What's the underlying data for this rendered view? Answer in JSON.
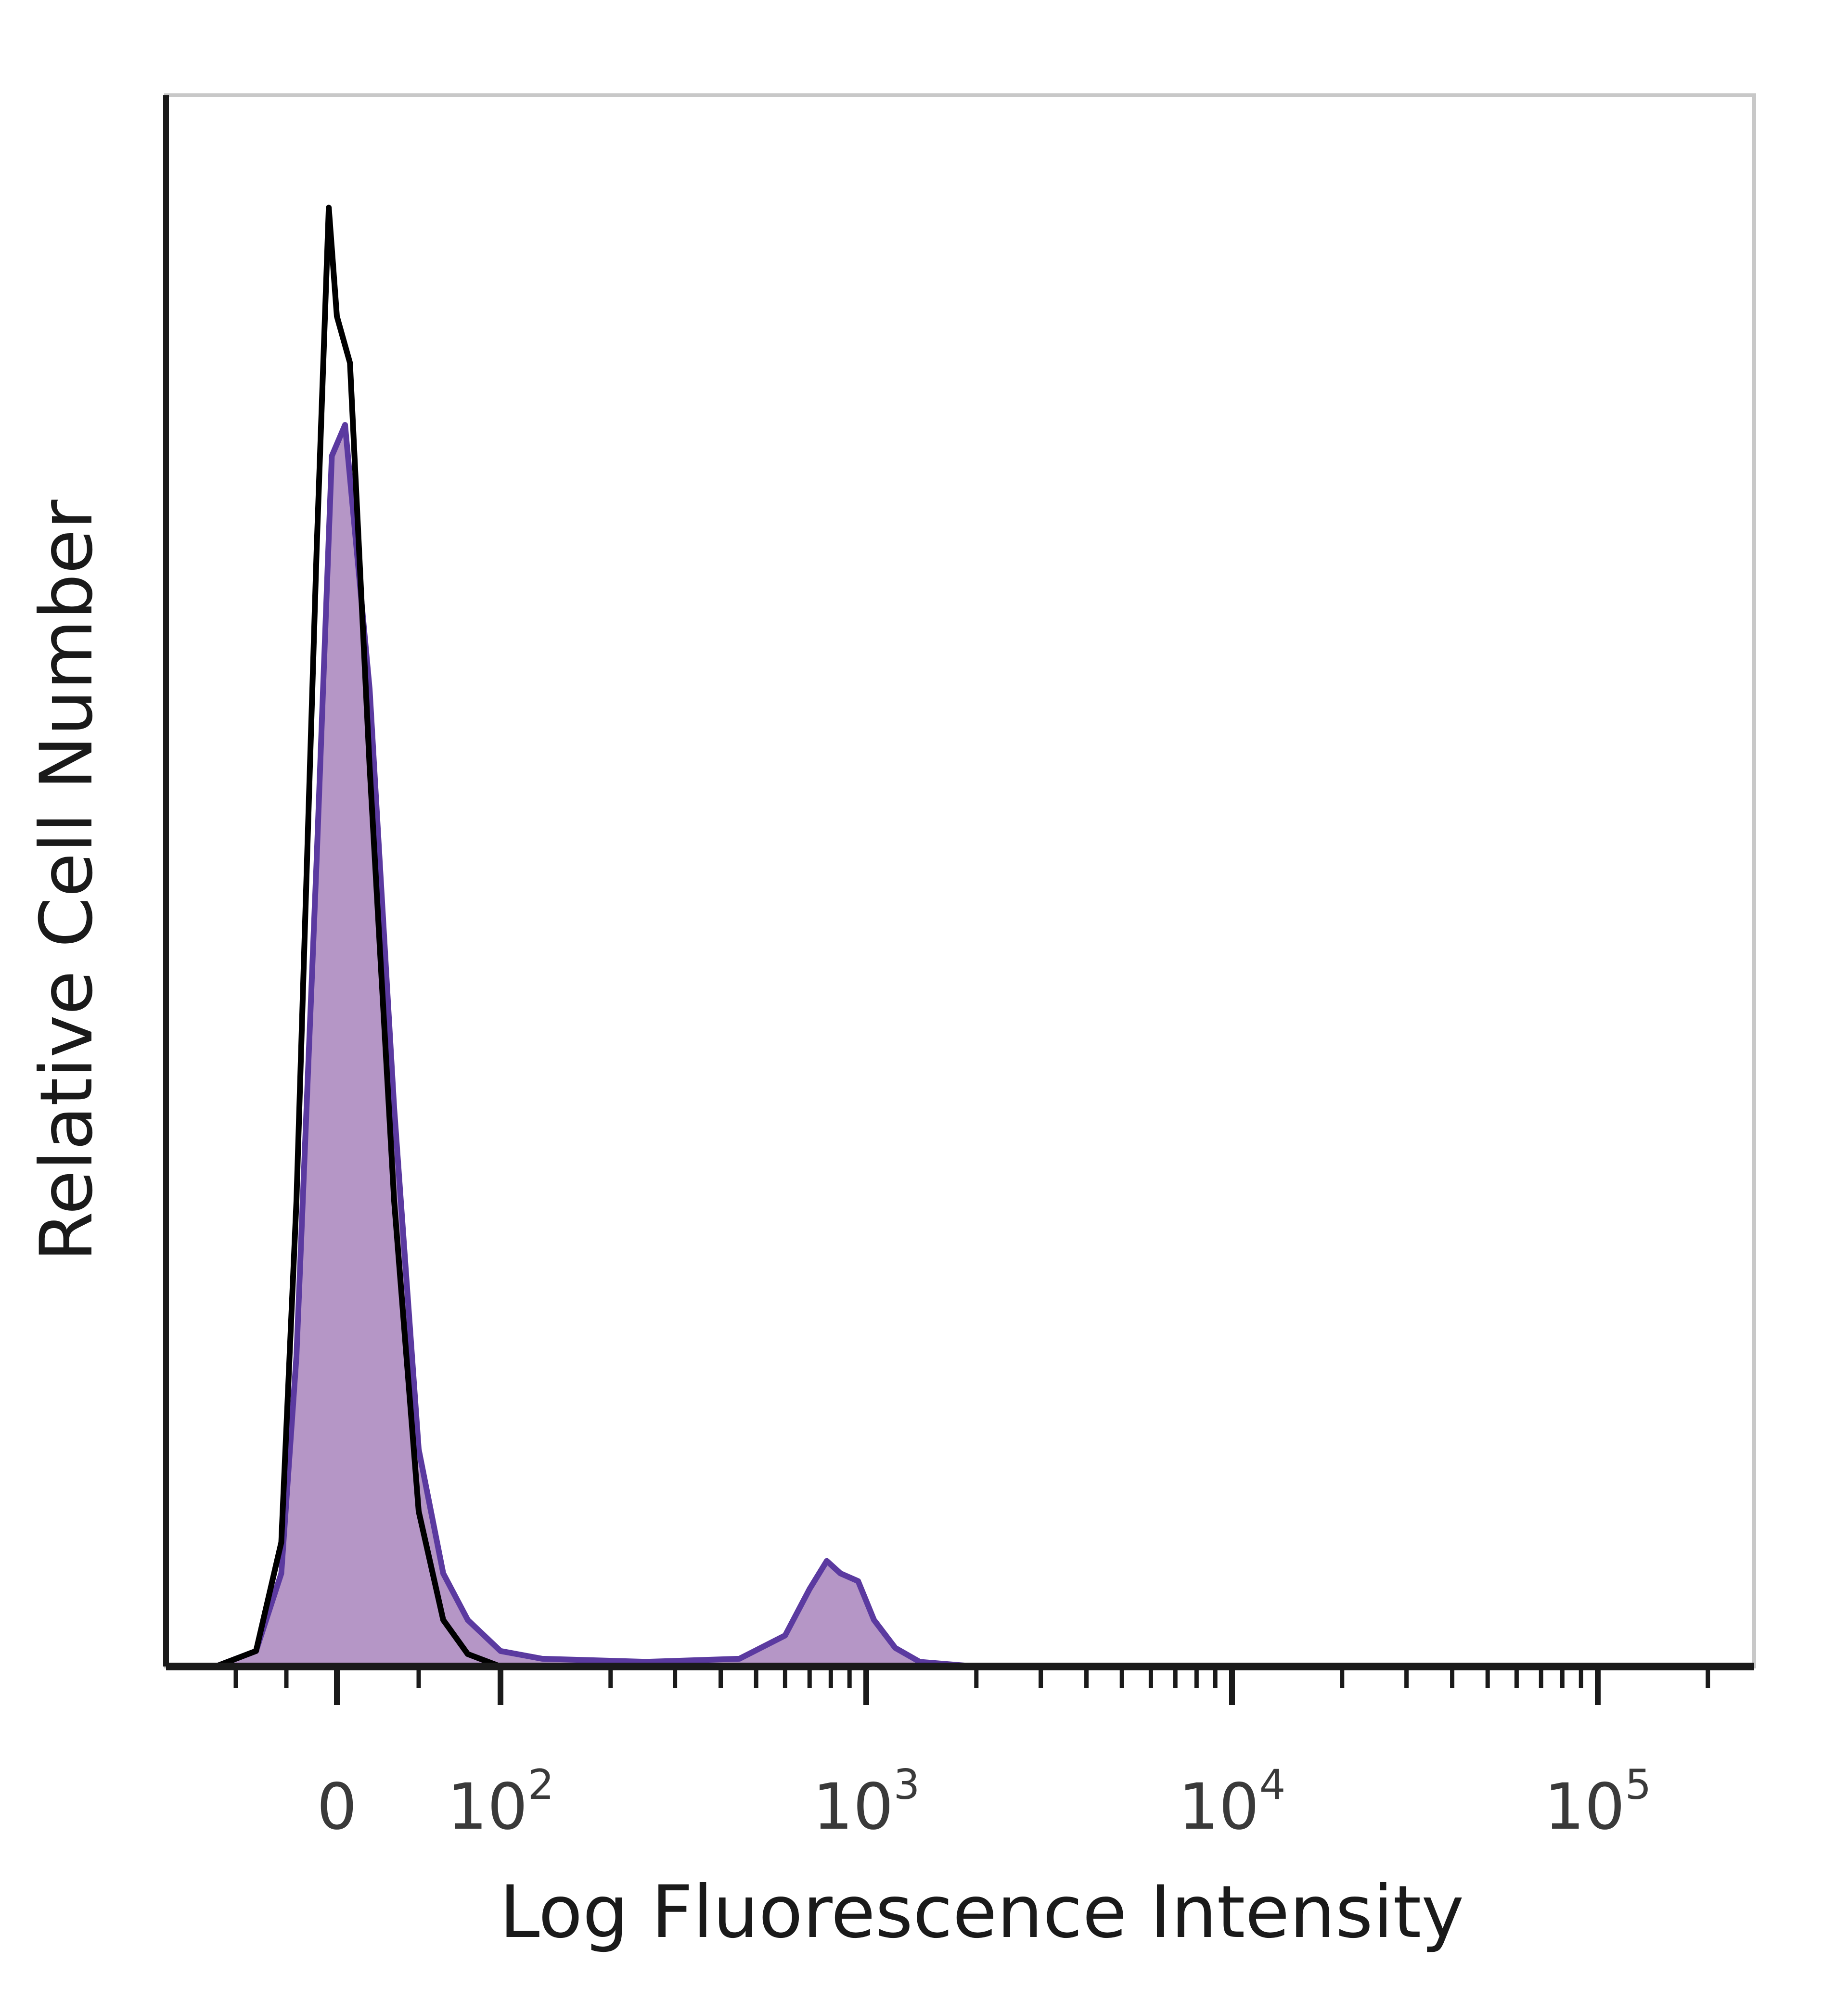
{
  "chart_data": {
    "type": "area",
    "xlabel": "Log Fluorescence Intensity",
    "ylabel": "Relative Cell Number",
    "x_scale": "biexponential",
    "ylim": [
      0,
      100
    ],
    "grid": false,
    "x_ticks": [
      {
        "base": "0",
        "exp": ""
      },
      {
        "base": "10",
        "exp": "2"
      },
      {
        "base": "10",
        "exp": "3"
      },
      {
        "base": "10",
        "exp": "4"
      },
      {
        "base": "10",
        "exp": "5"
      }
    ],
    "series": [
      {
        "color": "#5b3aa0",
        "fill": "#b596c6",
        "filled": true,
        "points": [
          [
            -120,
            0
          ],
          [
            -80,
            1
          ],
          [
            -55,
            6
          ],
          [
            -40,
            20
          ],
          [
            -20,
            52
          ],
          [
            -5,
            78
          ],
          [
            5,
            80
          ],
          [
            20,
            63
          ],
          [
            35,
            36
          ],
          [
            50,
            14
          ],
          [
            65,
            6
          ],
          [
            80,
            3
          ],
          [
            100,
            1
          ],
          [
            130,
            0.5
          ],
          [
            250,
            0.3
          ],
          [
            450,
            0.5
          ],
          [
            600,
            2
          ],
          [
            700,
            5
          ],
          [
            780,
            6.8
          ],
          [
            850,
            6
          ],
          [
            950,
            5.5
          ],
          [
            1050,
            3
          ],
          [
            1200,
            1.2
          ],
          [
            1400,
            0.3
          ],
          [
            2000,
            0
          ],
          [
            200000,
            0
          ]
        ]
      },
      {
        "color": "#000000",
        "filled": false,
        "points": [
          [
            -120,
            0
          ],
          [
            -80,
            1
          ],
          [
            -55,
            8
          ],
          [
            -40,
            30
          ],
          [
            -20,
            72
          ],
          [
            -8,
            94
          ],
          [
            0,
            87
          ],
          [
            8,
            84
          ],
          [
            20,
            58
          ],
          [
            35,
            30
          ],
          [
            50,
            10
          ],
          [
            65,
            3
          ],
          [
            80,
            0.8
          ],
          [
            100,
            0
          ],
          [
            200000,
            0
          ]
        ]
      }
    ]
  }
}
